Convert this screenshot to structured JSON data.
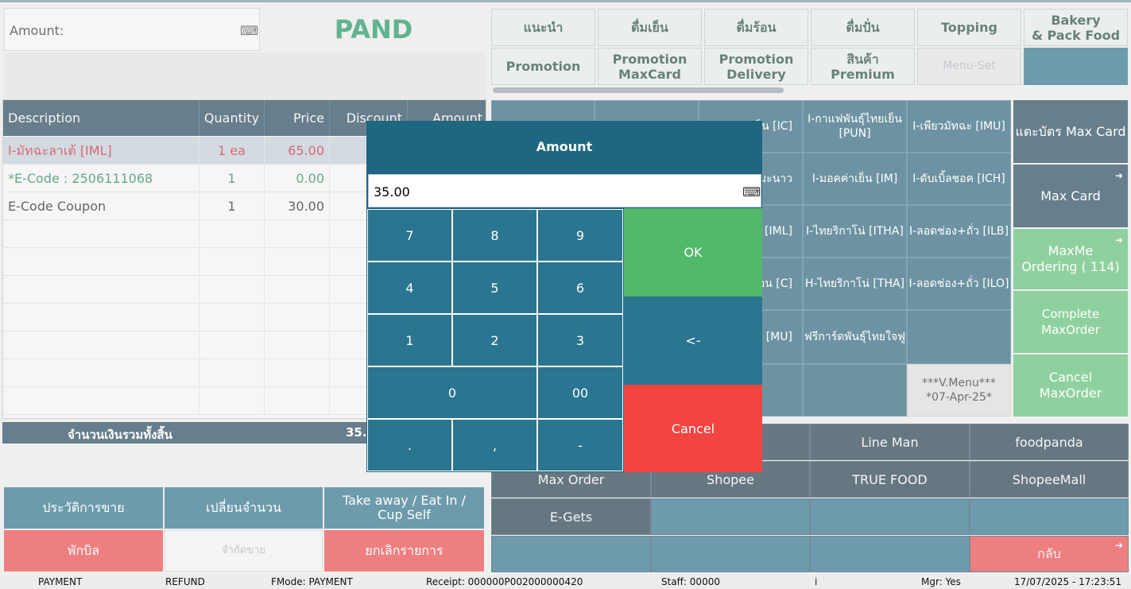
{
  "amount_field": {
    "label": "Amount:",
    "icon": "keyboard-icon"
  },
  "brand": "PAND",
  "table": {
    "headers": [
      "Description",
      "Quantity",
      "Price",
      "Discount",
      "Amount"
    ],
    "rows": [
      {
        "description": "I-มัทฉะลาเต้ [IML]",
        "quantity": "1 ea",
        "price": "65.00",
        "color": "#c0182b"
      },
      {
        "description": "*E-Code : 2506111068",
        "quantity": "1",
        "price": "0.00",
        "color": "#127a3d"
      },
      {
        "description": "E-Code Coupon",
        "quantity": "1",
        "price": "30.00",
        "color": "#111111"
      }
    ]
  },
  "total": {
    "label": "จำนวนเงินรวมทั้งสิ้น",
    "value": "35."
  },
  "left_buttons": {
    "history": "ประวัติการขาย",
    "change_qty": "เปลี่ยนจำนวน",
    "takeaway": "Take away / Eat In / Cup Self",
    "hold_bill": "พักบิล",
    "limit_sale": "จำกัดขาย",
    "cancel_list": "ยกเลิกรายการ"
  },
  "categories_row1": [
    "แนะนำ",
    "ดื่มเย็น",
    "ดื่มร้อน",
    "ดื่มปั่น",
    "Topping",
    "Bakery\n& Pack Food"
  ],
  "categories_row2": [
    "Promotion",
    "Promotion\nMaxCard",
    "Promotion\nDelivery",
    "สินค้า\nPremium",
    "Menu-Set",
    ""
  ],
  "menu_items": {
    "r1c3": "ห็น [IC]",
    "r1c4": "I-กาแฟพันธุ์ไทยเย็น\n[PUN]",
    "r1c5": "I-เพียวมัทฉะ [IMU]",
    "r2c3": "มะนาว",
    "r2c4": "I-มอคค่าเย็น [IM]",
    "r2c5": "I-ดับเบิ้ลชอค [ICH]",
    "r3c3": "ต้ [IML]",
    "r3c4": "I-ไทยริกาโน่ [ITHA]",
    "r3c5": "I-ลอดช่อง+ถั่ว [ILB]",
    "r4c3": "อน [C]",
    "r4c4": "H-ไทยริกาโน่ [THA]",
    "r4c5": "I-ลอดช่อง+ถั่ว [ILO]",
    "r5c3": "ะ [MU]",
    "r5c4": "ฟรีการ์ดพันธุ์ไทยใจฟู",
    "vmenu": "***V.Menu***\n*07-Apr-25*"
  },
  "right_buttons": {
    "tap_card": "แตะบัตร Max Card",
    "max_card": "Max Card",
    "maxme_ordering": "MaxMe Ordering ( 114)",
    "complete_maxorder": "Complete MaxOrder",
    "cancel_maxorder": "Cancel\nMaxOrder"
  },
  "delivery": {
    "line_man": "Line Man",
    "foodpanda": "foodpanda",
    "max_order": "Max Order",
    "shopee": "Shopee",
    "true_food": "TRUE FOOD",
    "shopee_mall": "ShopeeMall",
    "e_gets": "E-Gets",
    "back": "กลับ"
  },
  "status_bar": {
    "payment": "PAYMENT",
    "refund": "REFUND",
    "fmode": "FMode: PAYMENT",
    "receipt": "Receipt: 000000P002000000420",
    "staff": "Staff: 00000",
    "info": "i",
    "mgr": "Mgr: Yes",
    "datetime": "17/07/2025 - 17:23:51"
  },
  "modal": {
    "title": "Amount",
    "value": "35.00",
    "keys": [
      "7",
      "8",
      "9",
      "4",
      "5",
      "6",
      "1",
      "2",
      "3",
      "0",
      "00",
      ".",
      ",",
      "-"
    ],
    "ok": "OK",
    "backspace": "<-",
    "cancel": "Cancel"
  }
}
